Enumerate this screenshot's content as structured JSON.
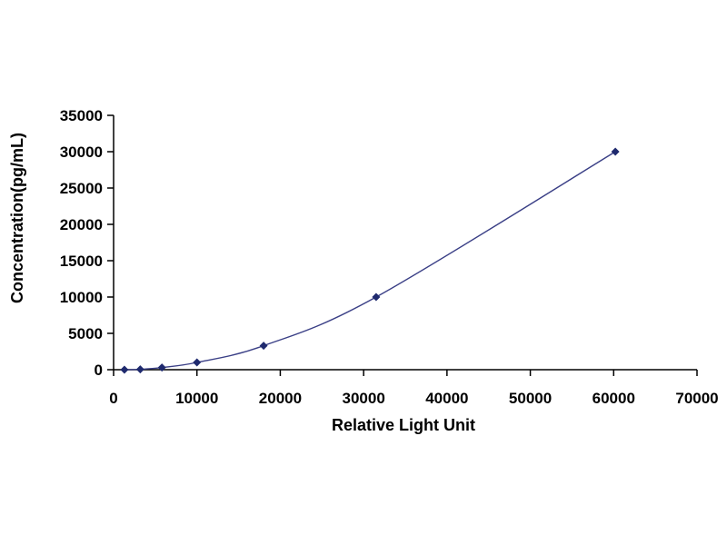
{
  "chart_data": {
    "type": "scatter",
    "title": "",
    "xlabel": "Relative Light Unit",
    "ylabel": "Concentration(pg/mL)",
    "xlim": [
      0,
      70000
    ],
    "ylim": [
      0,
      35000
    ],
    "x_ticks": [
      0,
      10000,
      20000,
      30000,
      40000,
      50000,
      60000,
      70000
    ],
    "y_ticks": [
      0,
      5000,
      10000,
      15000,
      20000,
      25000,
      30000,
      35000
    ],
    "x_tick_labels": [
      "0",
      "10000",
      "20000",
      "30000",
      "40000",
      "50000",
      "60000",
      "70000"
    ],
    "y_tick_labels": [
      "0",
      "5000",
      "10000",
      "15000",
      "20000",
      "25000",
      "30000",
      "35000"
    ],
    "grid": false,
    "legend": "none",
    "series": [
      {
        "points": [
          {
            "x": 1300,
            "y": 0
          },
          {
            "x": 3200,
            "y": 50
          },
          {
            "x": 5800,
            "y": 300
          },
          {
            "x": 10000,
            "y": 1000
          },
          {
            "x": 18000,
            "y": 3300
          },
          {
            "x": 31500,
            "y": 10000
          },
          {
            "x": 60200,
            "y": 30000
          }
        ],
        "marker": "diamond",
        "fit_line": "smooth-curve"
      }
    ],
    "colors": {
      "marker": "#1f2a6e",
      "line": "#3a3f86",
      "axis": "#000000"
    }
  }
}
